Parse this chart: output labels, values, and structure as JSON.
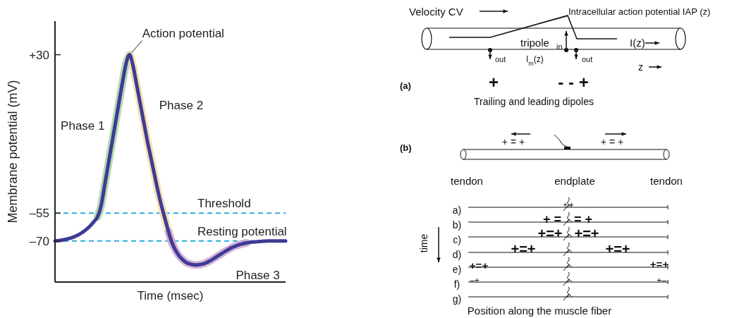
{
  "chart_data": [
    {
      "type": "line",
      "ylabel": "Membrane potential (mV)",
      "xlabel": "Time (msec)",
      "categories": [
        null,
        null,
        null,
        null,
        null,
        null,
        null,
        null,
        null,
        null,
        null,
        null,
        null,
        null,
        null,
        null,
        null,
        null,
        null,
        null,
        null,
        null,
        null,
        null,
        null,
        null,
        null,
        null,
        null,
        null,
        null,
        null,
        null,
        null,
        null,
        null,
        null,
        null,
        null,
        null,
        null,
        null,
        null,
        null,
        null,
        null,
        null,
        null,
        null,
        null,
        null,
        null,
        null,
        null,
        null,
        null,
        null,
        null,
        null,
        null,
        null,
        null,
        null,
        null,
        null,
        null
      ],
      "ylim": [
        -92,
        48
      ],
      "yticks": [
        {
          "value": 30,
          "label": "+30"
        },
        {
          "value": -55,
          "label": "–55"
        },
        {
          "value": -70,
          "label": "–70"
        }
      ],
      "tick_labels": "y",
      "series": [
        {
          "name": "Phase 1",
          "color": "#a8d5a2",
          "values": [
            null,
            null,
            null,
            null,
            null,
            null,
            null,
            null,
            null,
            null,
            null,
            null,
            -57,
            -51,
            -40,
            -29,
            -18,
            -7,
            4,
            15,
            25,
            30,
            null,
            null,
            null,
            null,
            null,
            null,
            null,
            null,
            null,
            null,
            null,
            null,
            null,
            null,
            null,
            null,
            null,
            null,
            null,
            null,
            null,
            null,
            null,
            null,
            null,
            null,
            null,
            null,
            null,
            null,
            null,
            null,
            null,
            null,
            null,
            null,
            null,
            null,
            null,
            null,
            null,
            null,
            null,
            null
          ]
        },
        {
          "name": "Phase 2",
          "color": "#f7d9a8",
          "values": [
            null,
            null,
            null,
            null,
            null,
            null,
            null,
            null,
            null,
            null,
            null,
            null,
            null,
            null,
            null,
            null,
            null,
            null,
            null,
            null,
            null,
            30,
            24,
            14,
            4,
            -6,
            -16,
            -25,
            -34,
            -43,
            -51,
            -58,
            -65,
            -71,
            null,
            null,
            null,
            null,
            null,
            null,
            null,
            null,
            null,
            null,
            null,
            null,
            null,
            null,
            null,
            null,
            null,
            null,
            null,
            null,
            null,
            null,
            null,
            null,
            null,
            null,
            null,
            null,
            null,
            null,
            null,
            null
          ]
        },
        {
          "name": "Phase 3",
          "color": "#d4a6d4",
          "values": [
            null,
            null,
            null,
            null,
            null,
            null,
            null,
            null,
            null,
            null,
            null,
            null,
            null,
            null,
            null,
            null,
            null,
            null,
            null,
            null,
            null,
            null,
            null,
            null,
            null,
            null,
            null,
            null,
            null,
            null,
            null,
            null,
            -65,
            -71,
            -75,
            -78,
            -80,
            -81.5,
            -82.3,
            -82.7,
            -82.8,
            -82.6,
            -82.1,
            -81.3,
            -80.3,
            -79.1,
            -77.9,
            -76.7,
            -75.5,
            -74.4,
            -73.4,
            -72.6,
            -71.9,
            -71.4,
            -71,
            null,
            null,
            null,
            null,
            null,
            null,
            null,
            null,
            null,
            null,
            null
          ]
        },
        {
          "color": "#3c3c96",
          "values": [
            -70,
            -69.8,
            -69.5,
            -69.1,
            -68.6,
            -68,
            -67.2,
            -66.2,
            -65,
            -63.5,
            -61.7,
            -59.5,
            -57,
            -51,
            -40,
            -29,
            -18,
            -7,
            4,
            15,
            25,
            30,
            24,
            14,
            4,
            -6,
            -16,
            -25,
            -34,
            -43,
            -51,
            -58,
            -65,
            -71,
            -75,
            -78,
            -80,
            -81.5,
            -82.3,
            -82.7,
            -82.8,
            -82.6,
            -82.1,
            -81.3,
            -80.3,
            -79.1,
            -77.9,
            -76.7,
            -75.5,
            -74.4,
            -73.4,
            -72.6,
            -71.9,
            -71.4,
            -71,
            -70.7,
            -70.5,
            -70.3,
            -70.2,
            -70.1,
            -70,
            -70,
            -70,
            -70,
            -70,
            -70
          ]
        }
      ],
      "ref_lines": [
        {
          "axis": "y",
          "value": -55,
          "label": "Threshold",
          "color": "#29abe2",
          "line_style": "dashed"
        },
        {
          "axis": "y",
          "value": -70,
          "label": "Resting potential",
          "color": "#29abe2",
          "line_style": "dashed"
        }
      ],
      "annotations": [
        "Action potential"
      ]
    },
    {
      "type": "other",
      "annotations": [
        "Velocity CV",
        "Intracellular action potential IAP (z)",
        "tripole",
        "in",
        "out",
        "I$_{m}$(z)",
        "out",
        "I(z)",
        "z",
        "(a)",
        "+",
        "- - +",
        "Trailing and  leading dipoles",
        "(b)",
        "+ = +",
        "+ = +",
        "tendon",
        "endplate",
        "tendon",
        "a)",
        "b)",
        "c)",
        "d)",
        "e)",
        "f)",
        "g)",
        "time",
        "Position along the muscle fiber",
        "+ +",
        "+ =",
        "= +",
        "+=+",
        "+=+",
        "+=+",
        "+=+",
        "+=+",
        "+=+",
        "–+",
        "+–"
      ]
    }
  ]
}
